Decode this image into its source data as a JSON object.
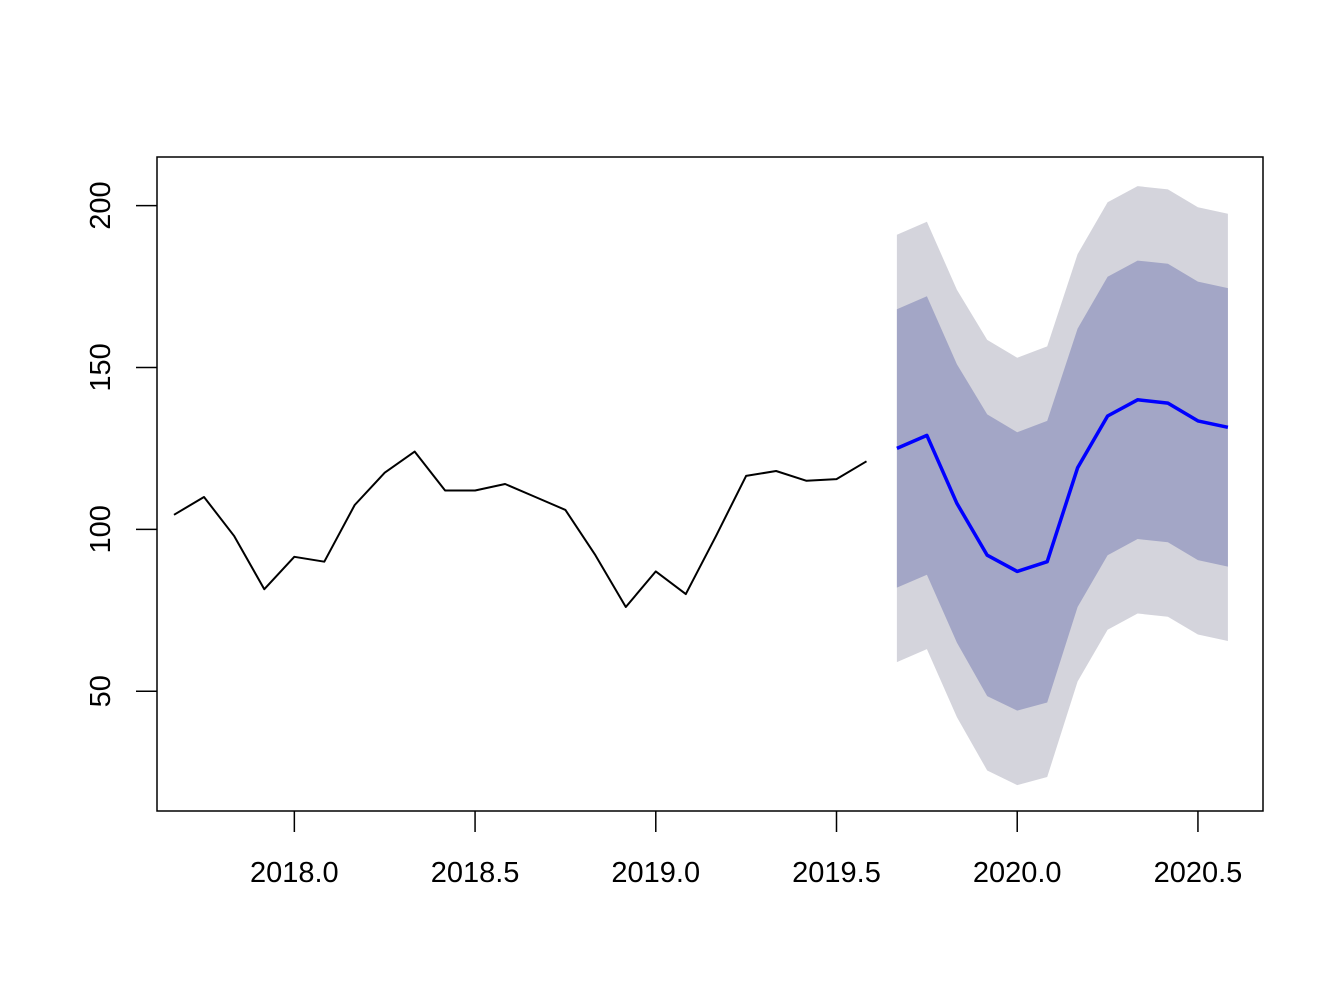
{
  "chart_data": {
    "type": "line",
    "title": "",
    "xlabel": "",
    "ylabel": "",
    "xlim": [
      2017.62,
      2020.68
    ],
    "ylim": [
      13,
      215
    ],
    "x_ticks": [
      2018.0,
      2018.5,
      2019.0,
      2019.5,
      2020.0,
      2020.5
    ],
    "x_tick_labels": [
      "2018.0",
      "2018.5",
      "2019.0",
      "2019.5",
      "2020.0",
      "2020.5"
    ],
    "y_ticks": [
      50,
      100,
      150,
      200
    ],
    "y_tick_labels": [
      "50",
      "100",
      "150",
      "200"
    ],
    "grid": false,
    "colors": {
      "observed": "#000000",
      "forecast": "#0000ff",
      "band_80": "#a3a6c6",
      "band_95": "#d4d4dc"
    },
    "series": [
      {
        "kind": "observed",
        "x": [
          2017.667,
          2017.75,
          2017.833,
          2017.917,
          2018.0,
          2018.083,
          2018.167,
          2018.25,
          2018.333,
          2018.417,
          2018.5,
          2018.583,
          2018.667,
          2018.75,
          2018.833,
          2018.917,
          2019.0,
          2019.083,
          2019.167,
          2019.25,
          2019.333,
          2019.417,
          2019.5,
          2019.583
        ],
        "y": [
          104.5,
          110,
          98,
          81.5,
          91.5,
          90,
          107.5,
          117.5,
          124,
          112,
          112,
          114,
          110,
          106,
          92,
          76,
          87,
          80,
          98,
          116.5,
          118,
          115,
          115.5,
          121
        ]
      },
      {
        "kind": "forecast",
        "x": [
          2019.667,
          2019.75,
          2019.833,
          2019.917,
          2020.0,
          2020.083,
          2020.167,
          2020.25,
          2020.333,
          2020.417,
          2020.5,
          2020.583
        ],
        "y": [
          125,
          129,
          108,
          92,
          87,
          90,
          119,
          135,
          140,
          139,
          133.5,
          131.5
        ],
        "lo80": [
          82,
          86,
          65,
          48.5,
          44,
          46.5,
          76,
          92,
          97,
          96,
          90.5,
          88.5
        ],
        "hi80": [
          168,
          172,
          151,
          135.5,
          130,
          133.5,
          162,
          178,
          183,
          182,
          176.5,
          174.5
        ],
        "lo95": [
          59,
          63,
          42,
          25.5,
          21,
          23.5,
          53,
          69,
          74,
          73,
          67.5,
          65.5
        ],
        "hi95": [
          191,
          195,
          174,
          158.5,
          153,
          156.5,
          185,
          201,
          206,
          205,
          199.5,
          197.5
        ]
      }
    ]
  }
}
